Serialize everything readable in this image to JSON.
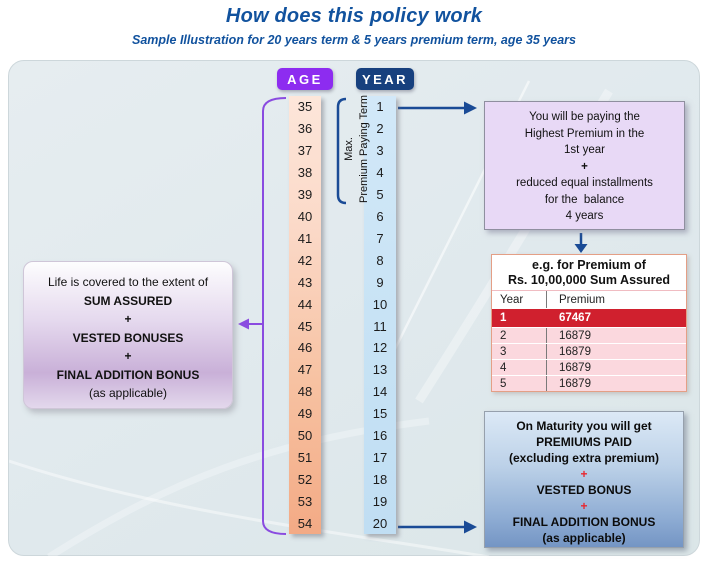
{
  "title": "How does this policy work",
  "subtitle": "Sample Illustration for 20 years term & 5 years premium term, age 35 years",
  "columns": {
    "age_header": "AGE",
    "year_header": "YEAR",
    "ages": [
      "35",
      "36",
      "37",
      "38",
      "39",
      "40",
      "41",
      "42",
      "43",
      "44",
      "45",
      "46",
      "47",
      "48",
      "49",
      "50",
      "51",
      "52",
      "53",
      "54"
    ],
    "years": [
      "1",
      "2",
      "3",
      "4",
      "5",
      "6",
      "7",
      "8",
      "9",
      "10",
      "11",
      "12",
      "13",
      "14",
      "15",
      "16",
      "17",
      "18",
      "19",
      "20"
    ],
    "max_premium_label": {
      "line1": "Max.",
      "line2": "Premium Paying Term"
    }
  },
  "left_box": {
    "lines": [
      {
        "t": "Life is covered to the extent of",
        "b": false,
        "red": false
      },
      {
        "t": "SUM ASSURED",
        "b": true,
        "red": false
      },
      {
        "t": "+",
        "b": true,
        "red": false
      },
      {
        "t": "VESTED BONUSES",
        "b": true,
        "red": false
      },
      {
        "t": "+",
        "b": true,
        "red": false
      },
      {
        "t": "FINAL ADDITION BONUS",
        "b": true,
        "red": false
      },
      {
        "t": "(as applicable)",
        "b": false,
        "red": false
      }
    ]
  },
  "top_right_box": {
    "lines": [
      {
        "t": "You will be paying the",
        "b": false,
        "red": false
      },
      {
        "t": "Highest Premium in the",
        "b": false,
        "red": false
      },
      {
        "t": "1st year",
        "b": false,
        "red": false
      },
      {
        "t": "+",
        "b": true,
        "red": false
      },
      {
        "t": "reduced equal installments",
        "b": false,
        "red": false
      },
      {
        "t": "for the  balance",
        "b": false,
        "red": false
      },
      {
        "t": "4 years",
        "b": false,
        "red": false
      }
    ]
  },
  "premium_table": {
    "title_line1": "e.g. for Premium of",
    "title_line2": "Rs. 10,00,000 Sum Assured",
    "col_year": "Year",
    "col_premium": "Premium",
    "rows": [
      {
        "year": "1",
        "premium": "67467",
        "highlight": true
      },
      {
        "year": "2",
        "premium": "16879",
        "highlight": false
      },
      {
        "year": "3",
        "premium": "16879",
        "highlight": false
      },
      {
        "year": "4",
        "premium": "16879",
        "highlight": false
      },
      {
        "year": "5",
        "premium": "16879",
        "highlight": false
      }
    ]
  },
  "bottom_right_box": {
    "lines": [
      {
        "t": "On Maturity you will get",
        "b": true,
        "red": false
      },
      {
        "t": "PREMIUMS PAID",
        "b": true,
        "red": false
      },
      {
        "t": "(excluding extra premium)",
        "b": true,
        "red": false
      },
      {
        "t": "+",
        "b": true,
        "red": true
      },
      {
        "t": "VESTED BONUS",
        "b": true,
        "red": false
      },
      {
        "t": "+",
        "b": true,
        "red": true
      },
      {
        "t": "FINAL ADDITION BONUS",
        "b": true,
        "red": false
      },
      {
        "t": "(as applicable)",
        "b": true,
        "red": false
      }
    ]
  },
  "colors": {
    "title_blue": "#11529e",
    "age_badge_purple": "#8d2cf0",
    "year_badge_navy": "#17407e",
    "connector_blue": "#1a4b96",
    "bracket_purple": "#8a4be0",
    "highlight_red": "#d0202e",
    "plus_red": "#e8262e",
    "age_column_peach": "#f3aa85",
    "year_column_blue": "#c8e3f5"
  }
}
